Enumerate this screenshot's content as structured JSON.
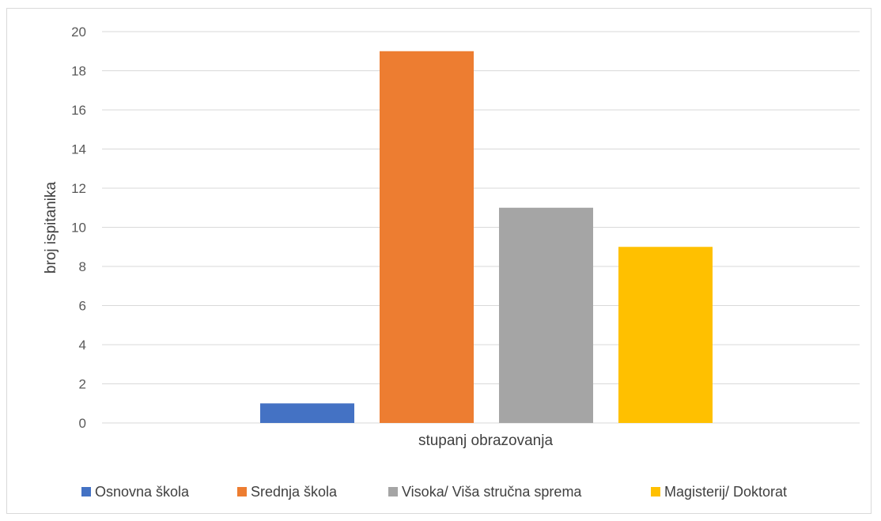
{
  "chart_data": {
    "type": "bar",
    "categories": [
      "Osnovna škola",
      "Srednja škola",
      "Visoka/ Viša stručna sprema",
      "Magisterij/ Doktorat"
    ],
    "values": [
      1,
      19,
      11,
      9
    ],
    "colors": [
      "#4472c4",
      "#ed7d31",
      "#a5a5a5",
      "#ffc000"
    ],
    "xlabel": "stupanj obrazovanja",
    "ylabel": "broj ispitanika",
    "ylim": [
      0,
      20
    ],
    "yticks": [
      0,
      2,
      4,
      6,
      8,
      10,
      12,
      14,
      16,
      18,
      20
    ],
    "grid": true,
    "legend_position": "bottom"
  }
}
